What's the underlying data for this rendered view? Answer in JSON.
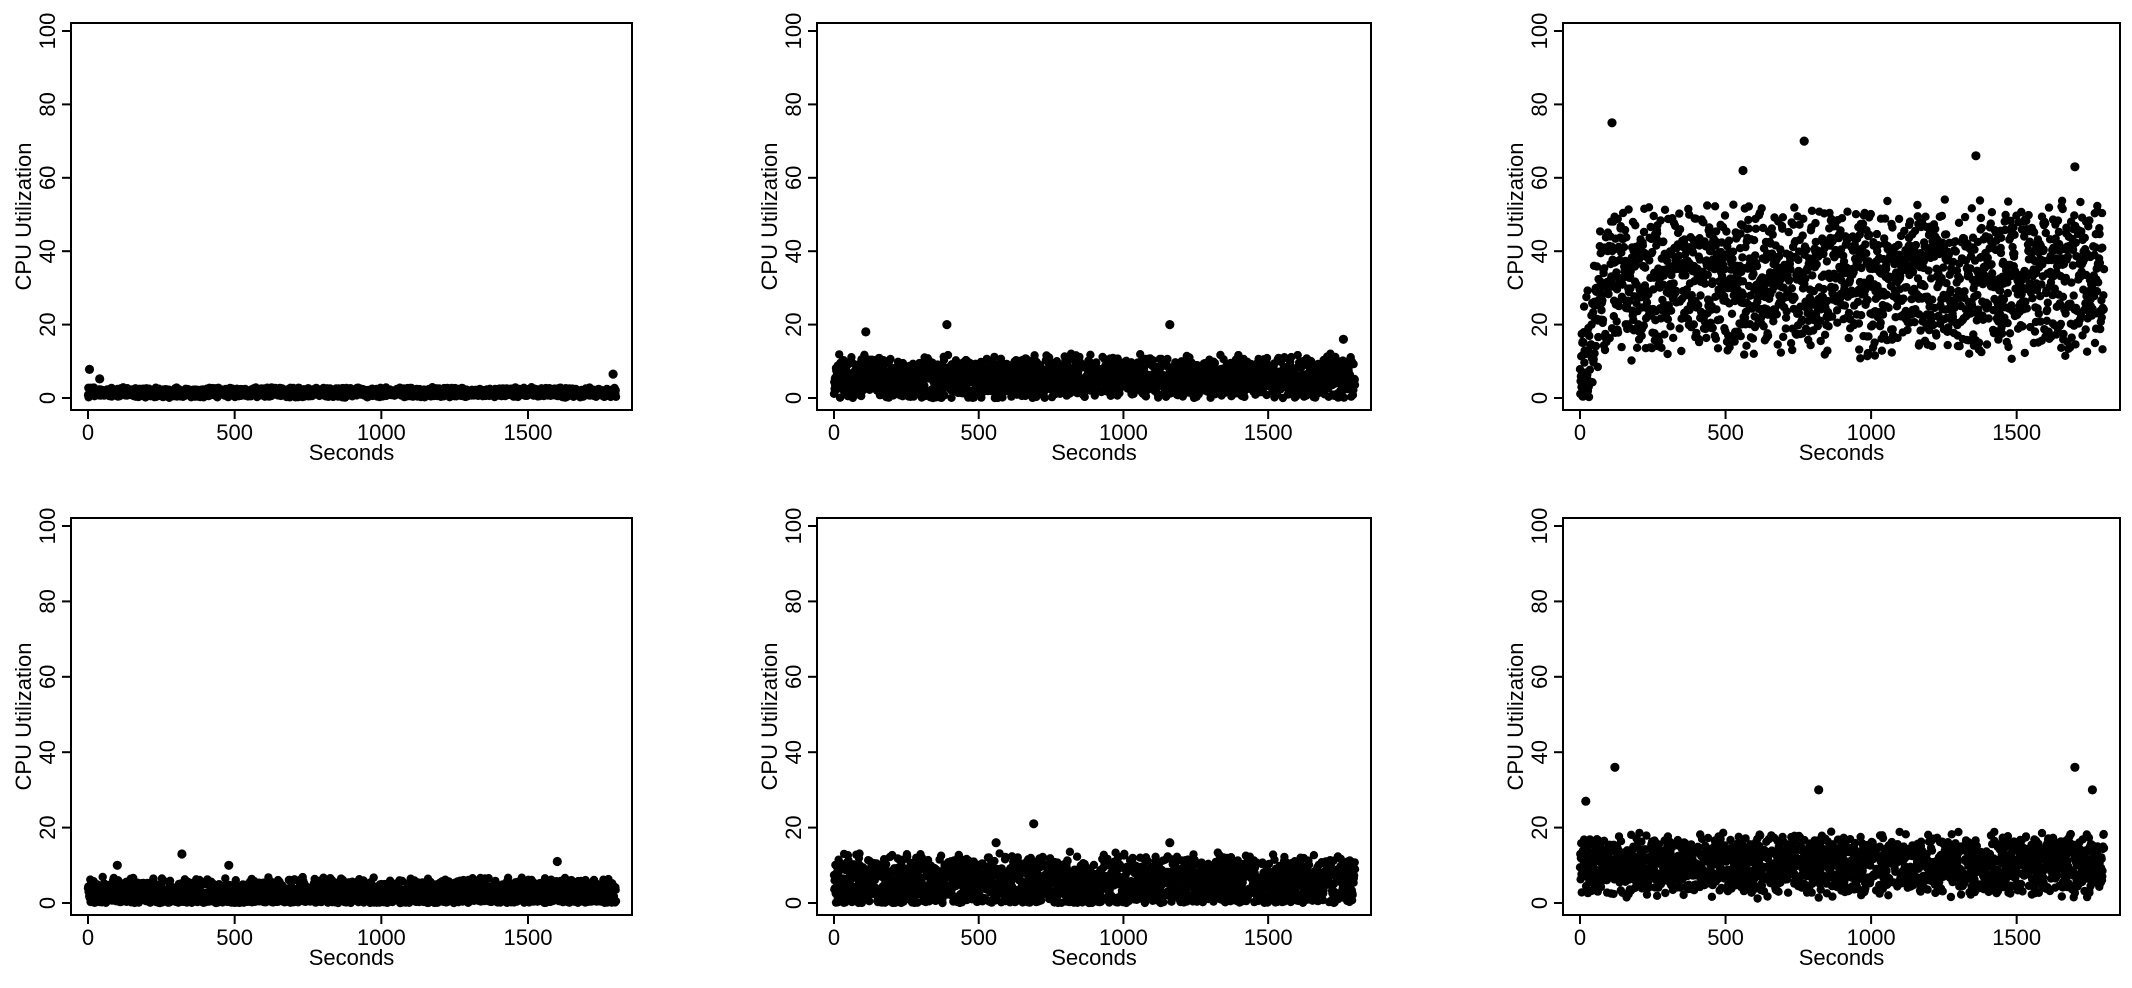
{
  "chart_data": [
    {
      "type": "scatter",
      "xlabel": "Seconds",
      "ylabel": "CPU Utilization",
      "xlim": [
        0,
        1800
      ],
      "ylim": [
        0,
        100
      ],
      "x_ticks": [
        0,
        500,
        1000,
        1500
      ],
      "y_ticks": [
        0,
        20,
        40,
        60,
        80,
        100
      ],
      "grid": false,
      "point_color": "#000000",
      "sample_interval_s": 1,
      "profile": {
        "baseline": 1.5,
        "spread": 2.0,
        "ramp_until_s": 0,
        "spikes": [
          [
            5,
            7.8
          ],
          [
            40,
            5.2
          ],
          [
            1790,
            6.5
          ]
        ]
      }
    },
    {
      "type": "scatter",
      "xlabel": "Seconds",
      "ylabel": "CPU Utilization",
      "xlim": [
        0,
        1800
      ],
      "ylim": [
        0,
        100
      ],
      "x_ticks": [
        0,
        500,
        1000,
        1500
      ],
      "y_ticks": [
        0,
        20,
        40,
        60,
        80,
        100
      ],
      "grid": false,
      "point_color": "#000000",
      "sample_interval_s": 1,
      "profile": {
        "baseline": 5.5,
        "spread": 9.0,
        "ramp_until_s": 0,
        "spikes": [
          [
            110,
            18
          ],
          [
            390,
            20
          ],
          [
            1160,
            20
          ],
          [
            1760,
            16
          ]
        ]
      }
    },
    {
      "type": "scatter",
      "xlabel": "Seconds",
      "ylabel": "CPU Utilization",
      "xlim": [
        0,
        1800
      ],
      "ylim": [
        0,
        100
      ],
      "x_ticks": [
        0,
        500,
        1000,
        1500
      ],
      "y_ticks": [
        0,
        20,
        40,
        60,
        80,
        100
      ],
      "grid": false,
      "point_color": "#000000",
      "sample_interval_s": 1,
      "profile": {
        "baseline": 32,
        "spread": 30,
        "ramp_until_s": 110,
        "spikes": [
          [
            110,
            75
          ],
          [
            770,
            70
          ],
          [
            1360,
            66
          ],
          [
            1700,
            63
          ],
          [
            560,
            62
          ],
          [
            10,
            0.5
          ]
        ]
      }
    },
    {
      "type": "scatter",
      "xlabel": "Seconds",
      "ylabel": "CPU Utilization",
      "xlim": [
        0,
        1800
      ],
      "ylim": [
        0,
        100
      ],
      "x_ticks": [
        0,
        500,
        1000,
        1500
      ],
      "y_ticks": [
        0,
        20,
        40,
        60,
        80,
        100
      ],
      "grid": false,
      "point_color": "#000000",
      "sample_interval_s": 1,
      "profile": {
        "baseline": 2.5,
        "spread": 6.0,
        "ramp_until_s": 0,
        "spikes": [
          [
            320,
            13
          ],
          [
            1600,
            11
          ],
          [
            100,
            10
          ],
          [
            480,
            10
          ]
        ]
      }
    },
    {
      "type": "scatter",
      "xlabel": "Seconds",
      "ylabel": "CPU Utilization",
      "xlim": [
        0,
        1800
      ],
      "ylim": [
        0,
        100
      ],
      "x_ticks": [
        0,
        500,
        1000,
        1500
      ],
      "y_ticks": [
        0,
        20,
        40,
        60,
        80,
        100
      ],
      "grid": false,
      "point_color": "#000000",
      "sample_interval_s": 1,
      "profile": {
        "baseline": 5.5,
        "spread": 11.0,
        "ramp_until_s": 0,
        "spikes": [
          [
            690,
            21
          ],
          [
            1160,
            16
          ],
          [
            560,
            16
          ]
        ]
      }
    },
    {
      "type": "scatter",
      "xlabel": "Seconds",
      "ylabel": "CPU Utilization",
      "xlim": [
        0,
        1800
      ],
      "ylim": [
        0,
        100
      ],
      "x_ticks": [
        0,
        500,
        1000,
        1500
      ],
      "y_ticks": [
        0,
        20,
        40,
        60,
        80,
        100
      ],
      "grid": false,
      "point_color": "#000000",
      "sample_interval_s": 1,
      "profile": {
        "baseline": 10,
        "spread": 12.0,
        "ramp_until_s": 0,
        "spikes": [
          [
            120,
            36
          ],
          [
            1700,
            36
          ],
          [
            820,
            30
          ],
          [
            1760,
            30
          ],
          [
            20,
            27
          ]
        ]
      }
    }
  ]
}
